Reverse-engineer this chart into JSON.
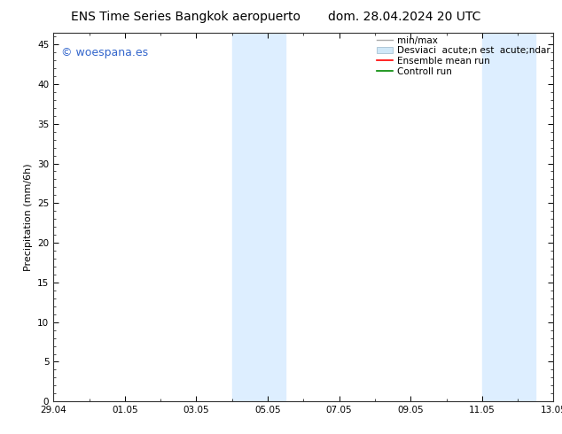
{
  "title_left": "ENS Time Series Bangkok aeropuerto",
  "title_right": "dom. 28.04.2024 20 UTC",
  "ylabel": "Precipitation (mm/6h)",
  "ylim": [
    0,
    46.5
  ],
  "yticks": [
    0,
    5,
    10,
    15,
    20,
    25,
    30,
    35,
    40,
    45
  ],
  "xlim_start": 0,
  "xlim_end": 14,
  "xtick_positions": [
    0,
    2,
    4,
    6,
    8,
    10,
    12,
    14
  ],
  "xtick_labels": [
    "29.04",
    "01.05",
    "03.05",
    "05.05",
    "07.05",
    "09.05",
    "11.05",
    "13.05"
  ],
  "shaded_bands": [
    {
      "x_start": 5.0,
      "x_end": 6.5
    },
    {
      "x_start": 12.0,
      "x_end": 13.5
    }
  ],
  "shade_color": "#ddeeff",
  "background_color": "#ffffff",
  "watermark_text": "© woespana.es",
  "watermark_color": "#3366cc",
  "minmax_color": "#aaaaaa",
  "std_facecolor": "#d0e8f8",
  "std_edgecolor": "#b0c8d8",
  "ensemble_color": "#ff0000",
  "control_color": "#008800",
  "title_fontsize": 10,
  "axis_fontsize": 8,
  "tick_fontsize": 7.5,
  "legend_fontsize": 7.5,
  "watermark_fontsize": 9
}
